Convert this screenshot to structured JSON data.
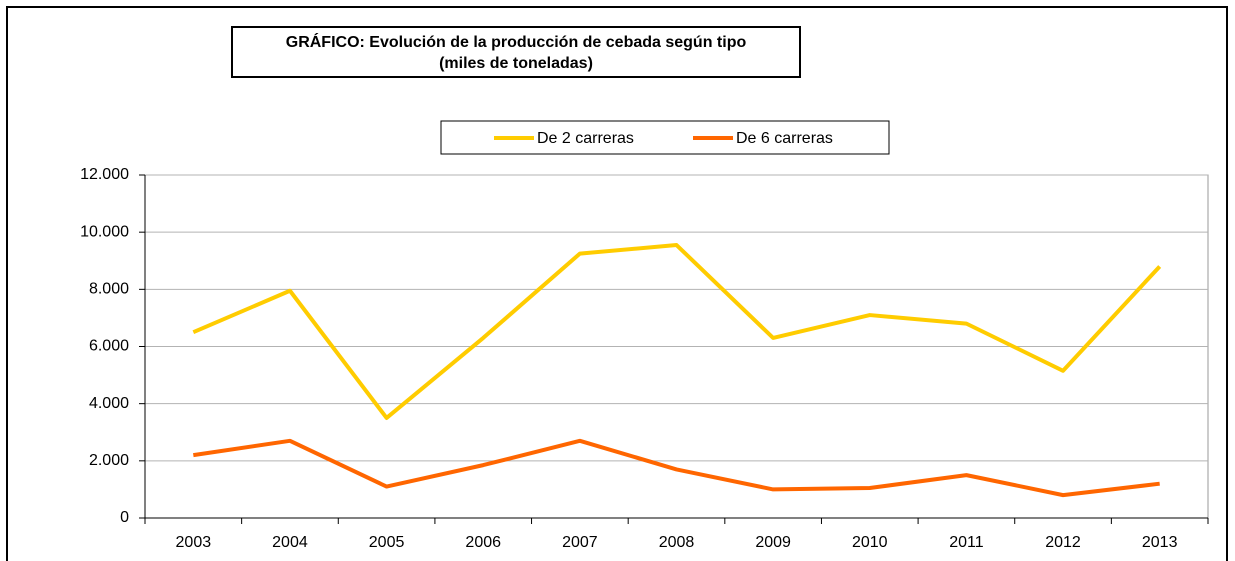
{
  "chart_data": {
    "type": "line",
    "title": "GRÁFICO: Evolución de la producción de cebada según tipo",
    "subtitle": "(miles de toneladas)",
    "categories": [
      "2003",
      "2004",
      "2005",
      "2006",
      "2007",
      "2008",
      "2009",
      "2010",
      "2011",
      "2012",
      "2013"
    ],
    "series": [
      {
        "name": "De 2 carreras",
        "color": "#ffcc00",
        "values": [
          6500,
          7950,
          3500,
          6300,
          9250,
          9550,
          6300,
          7100,
          6800,
          5150,
          8800
        ]
      },
      {
        "name": "De 6 carreras",
        "color": "#ff6600",
        "values": [
          2200,
          2700,
          1100,
          1850,
          2700,
          1700,
          1000,
          1050,
          1500,
          800,
          1200
        ]
      }
    ],
    "ylim": [
      0,
      12000
    ],
    "yticks": [
      0,
      {
        "value": 2000,
        "label": "2.000"
      },
      {
        "value": 4000,
        "label": "4.000"
      },
      {
        "value": 6000,
        "label": "6.000"
      },
      {
        "value": 8000,
        "label": "8.000"
      },
      {
        "value": 10000,
        "label": "10.000"
      },
      {
        "value": 12000,
        "label": "12.000"
      }
    ],
    "grid": true,
    "legend": "top"
  }
}
